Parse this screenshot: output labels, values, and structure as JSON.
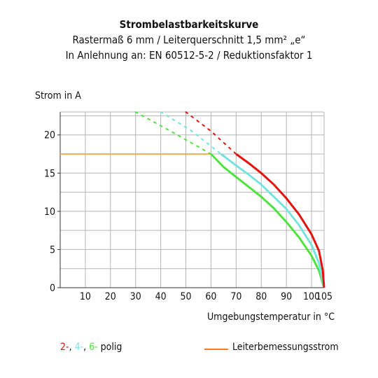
{
  "title": "Strombelastbarkeitskurve",
  "subtitle1": "Rastermaß 6 mm / Leiterquerschnitt 1,5 mm² „e“",
  "subtitle2": "In Anlehnung an: EN 60512-5-2 / Reduktionsfaktor 1",
  "chart_data": {
    "type": "line",
    "ylabel": "Strom in A",
    "xlabel": "Umgebungstemperatur in °C",
    "xlim": [
      0,
      105
    ],
    "ylim": [
      0,
      23
    ],
    "xticks": [
      10,
      20,
      30,
      40,
      50,
      60,
      70,
      80,
      90,
      100,
      105
    ],
    "yticks": [
      0,
      5,
      10,
      15,
      20
    ],
    "grid": true,
    "series": [
      {
        "name": "2-",
        "color": "#e3120b",
        "values": [
          [
            70,
            17.5
          ],
          [
            75,
            16.3
          ],
          [
            80,
            15.0
          ],
          [
            85,
            13.5
          ],
          [
            90,
            11.7
          ],
          [
            95,
            9.6
          ],
          [
            100,
            7.0
          ],
          [
            103,
            4.8
          ],
          [
            104.5,
            2.2
          ],
          [
            105,
            0
          ]
        ],
        "dotted": [
          [
            50,
            23
          ],
          [
            60,
            20.5
          ],
          [
            70,
            17.5
          ]
        ]
      },
      {
        "name": "4-",
        "color": "#77e3df",
        "values": [
          [
            64,
            17.5
          ],
          [
            70,
            16.0
          ],
          [
            75,
            14.8
          ],
          [
            80,
            13.5
          ],
          [
            85,
            11.9
          ],
          [
            90,
            10.3
          ],
          [
            95,
            8.2
          ],
          [
            100,
            5.6
          ],
          [
            103,
            3.2
          ],
          [
            105,
            0
          ]
        ],
        "dotted": [
          [
            40,
            23
          ],
          [
            52,
            20.6
          ],
          [
            64,
            17.5
          ]
        ]
      },
      {
        "name": "6-",
        "color": "#4fe33e",
        "values": [
          [
            60,
            17.5
          ],
          [
            65,
            15.8
          ],
          [
            70,
            14.5
          ],
          [
            75,
            13.2
          ],
          [
            80,
            11.9
          ],
          [
            85,
            10.4
          ],
          [
            90,
            8.6
          ],
          [
            95,
            6.6
          ],
          [
            100,
            4.2
          ],
          [
            103,
            2.2
          ],
          [
            105,
            0
          ]
        ],
        "dotted": [
          [
            30,
            23
          ],
          [
            45,
            20.3
          ],
          [
            60,
            17.5
          ]
        ]
      },
      {
        "name": "Leiterbemessungsstrom",
        "color": "#f5a63c",
        "values": [
          [
            0,
            17.5
          ],
          [
            60,
            17.5
          ]
        ]
      }
    ]
  },
  "legend": {
    "pole_parts": [
      {
        "text": "2-",
        "color": "#e3120b"
      },
      {
        "text": ", ",
        "color": "#111111"
      },
      {
        "text": "4-",
        "color": "#77e3df"
      },
      {
        "text": ", ",
        "color": "#111111"
      },
      {
        "text": "6-",
        "color": "#4fe33e"
      }
    ],
    "pole_suffix": " polig",
    "rated_label": "Leiterbemessungsstrom",
    "rated_line_color": "#f07c2a"
  }
}
